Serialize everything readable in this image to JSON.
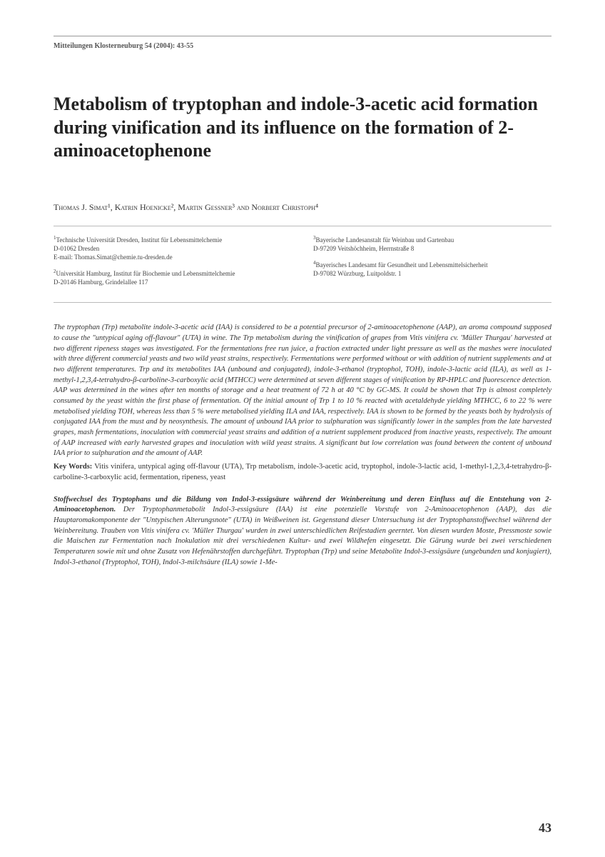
{
  "journal_header": "Mitteilungen Klosterneuburg 54 (2004): 43-55",
  "title": "Metabolism of tryptophan and indole-3-acetic acid formation during vinification and its influence on the formation of 2-aminoacetophenone",
  "authors_html": "Thomas J. Simat¹, Katrin Hoenicke², Martin Gessner³ and Norbert Christoph⁴",
  "affiliations": {
    "left": [
      {
        "sup": "1",
        "lines": [
          "Technische Universität Dresden, Institut für Lebensmittelchemie",
          "D-01062 Dresden",
          "E-mail: Thomas.Simat@chemie.tu-dresden.de"
        ]
      },
      {
        "sup": "2",
        "lines": [
          "Universität Hamburg, Institut für Biochemie und Lebensmittelchemie",
          "D-20146 Hamburg, Grindelallee 117"
        ]
      }
    ],
    "right": [
      {
        "sup": "3",
        "lines": [
          "Bayerische Landesanstalt für Weinbau und Gartenbau",
          "D-97209 Veitshöchheim, Herrnstraße 8"
        ]
      },
      {
        "sup": "4",
        "lines": [
          "Bayerisches Landesamt für Gesundheit und Lebensmittelsicherheit",
          "D-97082 Würzburg, Luitpoldstr. 1"
        ]
      }
    ]
  },
  "abstract_en": "The tryptophan (Trp) metabolite indole-3-acetic acid (IAA) is considered to be a potential precursor of 2-aminoacetophenone (AAP), an aroma compound supposed to cause the \"untypical aging off-flavour\" (UTA) in wine. The Trp metabolism during the vinification of grapes from Vitis vinifera cv. 'Müller Thurgau' harvested at two different ripeness stages was investigated. For the fermentations free run juice, a fraction extracted under light pressure as well as the mashes were inoculated with three different commercial yeasts and two wild yeast strains, respectively. Fermentations were performed without or with addition of nutrient supplements and at two different temperatures. Trp and its metabolites IAA (unbound and conjugated), indole-3-ethanol (tryptophol, TOH), indole-3-lactic acid (ILA), as well as 1-methyl-1,2,3,4-tetrahydro-β-carboline-3-carboxylic acid (MTHCC) were determined at seven different stages of vinification by RP-HPLC and fluorescence detection. AAP was determined in the wines after ten months of storage and a heat treatment of 72 h at 40 °C by GC-MS. It could be shown that Trp is almost completely consumed by the yeast within the first phase of fermentation. Of the initial amount of Trp 1 to 10 % reacted with acetaldehyde yielding MTHCC, 6 to 22 % were metabolised yielding TOH, whereas less than 5 % were metabolised yielding ILA and IAA, respectively. IAA is shown to be formed by the yeasts both by hydrolysis of conjugated IAA from the must and by neosynthesis. The amount of unbound IAA prior to sulphuration was significantly lower in the samples from the late harvested grapes, mash fermentations, inoculation with commercial yeast strains and addition of a nutrient supplement produced from inactive yeasts, respectively. The amount of AAP increased with early harvested grapes and inoculation with wild yeast strains. A significant but low correlation was found between the content of unbound IAA prior to sulphuration and the amount of AAP.",
  "keywords_label": "Key Words:",
  "keywords_text": " Vitis vinifera, untypical aging off-flavour (UTA), Trp metabolism, indole-3-acetic acid, tryptophol, indole-3-lactic acid, 1-methyl-1,2,3,4-tetrahydro-β-carboline-3-carboxylic acid, fermentation, ripeness, yeast",
  "abstract_de_title": "Stoffwechsel des Tryptophans und die Bildung von Indol-3-essigsäure während der Weinbereitung und deren Einfluss auf die Entstehung von 2-Aminoacetophenon.",
  "abstract_de_body": " Der Tryptophanmetabolit Indol-3-essigsäure (IAA) ist eine potenzielle Vorstufe von 2-Aminoacetophenon (AAP), das die Hauptaromakomponente der \"Untypischen Alterungsnote\" (UTA) in Weißweinen ist. Gegenstand dieser Untersuchung ist der Tryptophanstoffwechsel während der Weinbereitung. Trauben von Vitis vinifera cv. 'Müller Thurgau' wurden in zwei unterschiedlichen Reifestadien geerntet. Von diesen wurden Moste, Pressmoste sowie die Maischen zur Fermentation nach Inokulation mit drei verschiedenen Kultur- und zwei Wildhefen eingesetzt. Die Gärung wurde bei zwei verschiedenen Temperaturen sowie mit und ohne Zusatz von Hefenährstoffen durchgeführt. Tryptophan (Trp) und seine Metabolite Indol-3-essigsäure (ungebunden und konjugiert), Indol-3-ethanol (Tryptophol, TOH), Indol-3-milchsäure (ILA) sowie 1-Me-",
  "page_number": "43",
  "colors": {
    "text": "#333333",
    "rule": "#999999",
    "background": "#ffffff"
  },
  "typography": {
    "title_fontsize": 26,
    "body_fontsize": 10.5,
    "header_fontsize": 10,
    "affil_fontsize": 9,
    "authors_fontsize": 12
  }
}
